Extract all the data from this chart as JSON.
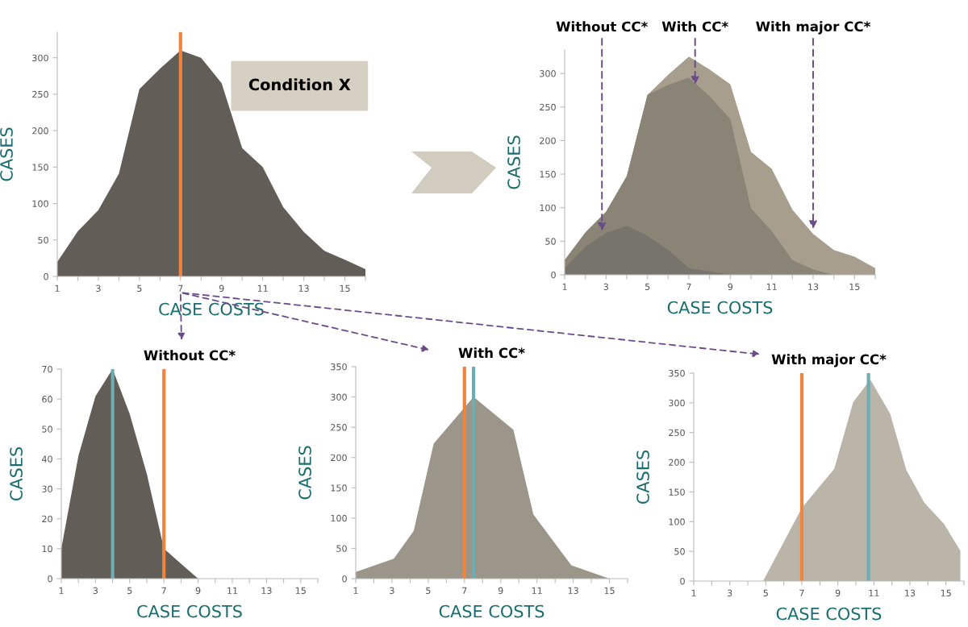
{
  "chart_data": [
    {
      "type": "area",
      "xlabel": "CASE COSTS",
      "ylabel": "CASES",
      "annotations": [
        "Condition X"
      ],
      "series": [
        {
          "color": "#625e57",
          "x": [
            1,
            2,
            3,
            4,
            5,
            6,
            7,
            8,
            9,
            10,
            11,
            12,
            13,
            14,
            15,
            16
          ],
          "values": [
            20,
            62,
            91,
            141,
            257,
            285,
            310,
            300,
            265,
            176,
            150,
            95,
            61,
            35,
            23,
            10
          ]
        }
      ],
      "xlim": [
        1,
        16
      ],
      "ylim": [
        0,
        335
      ],
      "xticks": [
        1,
        {
          "value": 2,
          "label": null
        },
        3,
        {
          "value": 4,
          "label": null
        },
        5,
        {
          "value": 6,
          "label": null
        },
        7,
        {
          "value": 8,
          "label": null
        },
        9,
        {
          "value": 10,
          "label": null
        },
        11,
        {
          "value": 12,
          "label": null
        },
        13,
        {
          "value": 14,
          "label": null
        },
        15,
        {
          "value": 16,
          "label": null
        }
      ],
      "yticks": [
        0,
        50,
        100,
        150,
        200,
        250,
        300
      ],
      "ref_lines": [
        {
          "axis": "x",
          "value": 7,
          "color": "#f0843c"
        }
      ]
    },
    {
      "type": "area",
      "xlabel": "CASE COSTS",
      "ylabel": "CASES",
      "annotations": [
        {
          "text": "Without CC*",
          "x": 2.8,
          "y": 62
        },
        {
          "text": "With CC*",
          "x": 7.3,
          "y": 280
        },
        {
          "text": "With major CC*",
          "x": 13,
          "y": 65
        }
      ],
      "series": [
        {
          "color": "#a79e8e",
          "x": [
            1,
            2,
            3,
            4,
            5,
            6,
            7,
            8,
            9,
            10,
            11,
            12,
            13,
            14,
            15,
            16
          ],
          "values": [
            22,
            63,
            94,
            147,
            268,
            298,
            325,
            306,
            284,
            183,
            158,
            97,
            61,
            37,
            27,
            10
          ]
        },
        {
          "color": "#8a8476",
          "x": [
            1,
            2,
            3,
            4,
            5,
            6,
            7,
            8,
            9,
            10,
            11,
            12,
            13,
            14,
            15,
            16
          ],
          "values": [
            22,
            63,
            94,
            147,
            268,
            283,
            294,
            266,
            232,
            99,
            65,
            22,
            8,
            0,
            0,
            0
          ]
        },
        {
          "color": "#77746b",
          "x": [
            1,
            2,
            3,
            4,
            5,
            6,
            7,
            8,
            9,
            10,
            11,
            12,
            13,
            14,
            15,
            16
          ],
          "values": [
            10,
            42,
            62,
            73,
            58,
            37,
            10,
            5,
            0,
            0,
            0,
            0,
            0,
            0,
            0,
            0
          ]
        }
      ],
      "xlim": [
        1,
        16
      ],
      "ylim": [
        0,
        335
      ],
      "xticks": [
        1,
        {
          "value": 2,
          "label": null
        },
        3,
        {
          "value": 4,
          "label": null
        },
        5,
        {
          "value": 6,
          "label": null
        },
        7,
        {
          "value": 8,
          "label": null
        },
        9,
        {
          "value": 10,
          "label": null
        },
        11,
        {
          "value": 12,
          "label": null
        },
        13,
        {
          "value": 14,
          "label": null
        },
        15,
        {
          "value": 16,
          "label": null
        }
      ],
      "yticks": [
        0,
        50,
        100,
        150,
        200,
        250,
        300
      ]
    },
    {
      "type": "area",
      "title": "Without CC*",
      "xlabel": "CASE COSTS",
      "ylabel": "CASES",
      "series": [
        {
          "color": "#625e57",
          "x": [
            1,
            2,
            3,
            4,
            5,
            6,
            7,
            8,
            9,
            10,
            11,
            12,
            13,
            14,
            15,
            16
          ],
          "values": [
            10,
            41,
            61,
            70,
            55,
            35,
            10,
            5,
            0,
            0,
            0,
            0,
            0,
            0,
            0,
            0
          ]
        }
      ],
      "xlim": [
        1,
        16
      ],
      "ylim": [
        0,
        70
      ],
      "xticks": [
        1,
        {
          "value": 2,
          "label": null
        },
        3,
        {
          "value": 4,
          "label": null
        },
        5,
        {
          "value": 6,
          "label": null
        },
        7,
        {
          "value": 8,
          "label": null
        },
        9,
        {
          "value": 10,
          "label": null
        },
        11,
        {
          "value": 12,
          "label": null
        },
        13,
        {
          "value": 14,
          "label": null
        },
        15,
        {
          "value": 16,
          "label": null
        }
      ],
      "yticks": [
        0,
        10,
        20,
        30,
        40,
        50,
        60,
        70
      ],
      "ref_lines": [
        {
          "axis": "x",
          "value": 4,
          "color": "#6fadb5"
        },
        {
          "axis": "x",
          "value": 7,
          "color": "#f0843c"
        }
      ]
    },
    {
      "type": "area",
      "title": "With CC*",
      "xlabel": "CASE COSTS",
      "ylabel": "CASES",
      "series": [
        {
          "color": "#9b958a",
          "x": [
            1,
            3.1,
            4.2,
            5.3,
            7.5,
            9.7,
            10.8,
            11.8,
            12.9,
            15
          ],
          "values": [
            11,
            33,
            79,
            223,
            300,
            246,
            106,
            66,
            22,
            0
          ]
        }
      ],
      "xlim": [
        1,
        16
      ],
      "ylim": [
        0,
        350
      ],
      "xticks": [
        1,
        {
          "value": 2,
          "label": null
        },
        3,
        {
          "value": 4,
          "label": null
        },
        5,
        {
          "value": 6,
          "label": null
        },
        7,
        {
          "value": 8,
          "label": null
        },
        9,
        {
          "value": 10,
          "label": null
        },
        11,
        {
          "value": 12,
          "label": null
        },
        13,
        {
          "value": 14,
          "label": null
        },
        15,
        {
          "value": 16,
          "label": null
        }
      ],
      "yticks": [
        0,
        50,
        100,
        150,
        200,
        250,
        300,
        350
      ],
      "ref_lines": [
        {
          "axis": "x",
          "value": 7,
          "color": "#f0843c"
        },
        {
          "axis": "x",
          "value": 7.5,
          "color": "#6fadb5"
        }
      ]
    },
    {
      "type": "area",
      "title": "With major CC*",
      "xlabel": "CASE COSTS",
      "ylabel": "CASES",
      "series": [
        {
          "color": "#bbb5a9",
          "x": [
            1,
            4.85,
            7,
            8.8,
            9.85,
            10.8,
            11.9,
            12.8,
            13.8,
            14.9,
            15.8
          ],
          "values": [
            0,
            0,
            123,
            189,
            301,
            339,
            282,
            187,
            132,
            96,
            51
          ]
        }
      ],
      "xlim": [
        1,
        16
      ],
      "ylim": [
        0,
        350
      ],
      "xticks": [
        1,
        {
          "value": 2,
          "label": null
        },
        3,
        {
          "value": 4,
          "label": null
        },
        5,
        {
          "value": 6,
          "label": null
        },
        7,
        {
          "value": 8,
          "label": null
        },
        9,
        {
          "value": 10,
          "label": null
        },
        11,
        {
          "value": 12,
          "label": null
        },
        13,
        {
          "value": 14,
          "label": null
        },
        15,
        {
          "value": 16,
          "label": null
        }
      ],
      "yticks": [
        0,
        50,
        100,
        150,
        200,
        250,
        300,
        350
      ],
      "ref_lines": [
        {
          "axis": "x",
          "value": 7,
          "color": "#f0843c"
        },
        {
          "axis": "x",
          "value": 10.7,
          "color": "#6fadb5"
        }
      ]
    }
  ]
}
